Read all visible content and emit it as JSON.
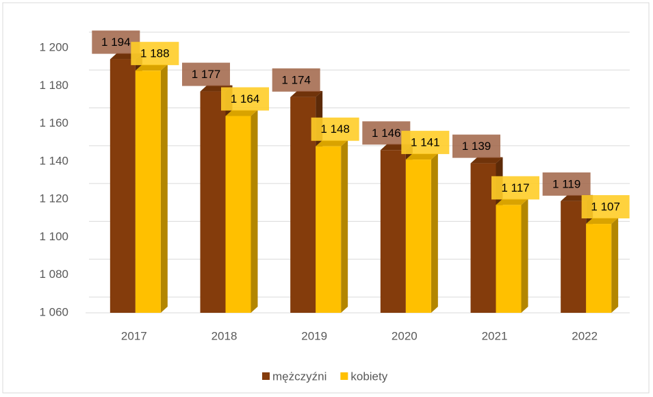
{
  "chart_data": {
    "type": "bar3d",
    "categories": [
      "2017",
      "2018",
      "2019",
      "2020",
      "2021",
      "2022"
    ],
    "series": [
      {
        "name": "mężczyźni",
        "color": "#843c0c",
        "values": [
          1194,
          1177,
          1174,
          1146,
          1139,
          1119
        ],
        "value_labels": [
          "1 194",
          "1 177",
          "1 174",
          "1 146",
          "1 139",
          "1 119"
        ]
      },
      {
        "name": "kobiety",
        "color": "#ffc000",
        "values": [
          1188,
          1164,
          1148,
          1141,
          1117,
          1107
        ],
        "value_labels": [
          "1 188",
          "1 164",
          "1 148",
          "1 141",
          "1 117",
          "1 107"
        ]
      }
    ],
    "ylim": [
      1060,
      1200
    ],
    "yticks": [
      {
        "value": 1060,
        "label": "1 060"
      },
      {
        "value": 1080,
        "label": "1 080"
      },
      {
        "value": 1100,
        "label": "1 100"
      },
      {
        "value": 1120,
        "label": "1 120"
      },
      {
        "value": 1140,
        "label": "1 140"
      },
      {
        "value": 1160,
        "label": "1 160"
      },
      {
        "value": 1180,
        "label": "1 180"
      },
      {
        "value": 1200,
        "label": "1 200"
      }
    ],
    "grid": true,
    "legend": "bottom"
  }
}
